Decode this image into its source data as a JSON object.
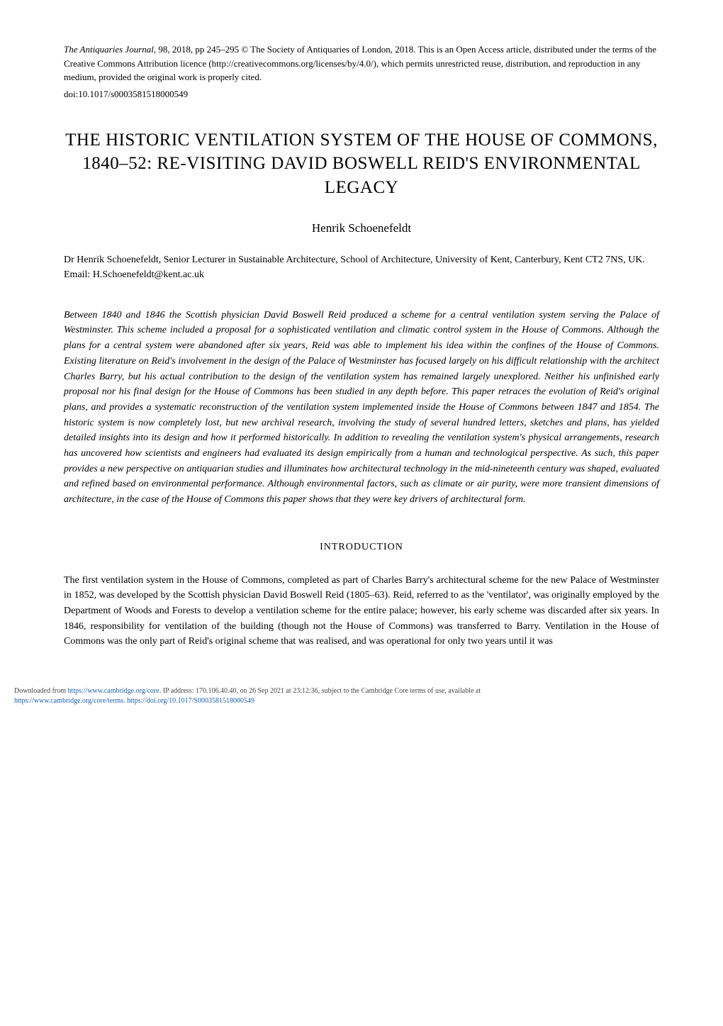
{
  "meta": {
    "journal": "The Antiquaries Journal",
    "citation": ", 98, 2018, pp 245–295   © The Society of Antiquaries of London, 2018. This is an Open Access article, distributed under the terms of the Creative Commons Attribution licence (http://creativecommons.org/licenses/by/4.0/), which permits unrestricted reuse, distribution, and reproduction in any medium, provided the original work is properly cited.",
    "doi": "doi:10.1017/s0003581518000549"
  },
  "title": "THE HISTORIC VENTILATION SYSTEM OF THE HOUSE OF COMMONS, 1840–52: RE-VISITING DAVID BOSWELL REID'S ENVIRONMENTAL LEGACY",
  "author": "Henrik Schoenefeldt",
  "affiliation": "Dr Henrik Schoenefeldt, Senior Lecturer in Sustainable Architecture, School of Architecture, University of Kent, Canterbury, Kent CT2 7NS, UK. Email: H.Schoenefeldt@kent.ac.uk",
  "abstract": "Between 1840 and 1846 the Scottish physician David Boswell Reid produced a scheme for a central ventilation system serving the Palace of Westminster. This scheme included a proposal for a sophisticated ventilation and climatic control system in the House of Commons. Although the plans for a central system were abandoned after six years, Reid was able to implement his idea within the confines of the House of Commons. Existing literature on Reid's involvement in the design of the Palace of Westminster has focused largely on his difficult relationship with the architect Charles Barry, but his actual contribution to the design of the ventilation system has remained largely unexplored. Neither his unfinished early proposal nor his final design for the House of Commons has been studied in any depth before. This paper retraces the evolution of Reid's original plans, and provides a systematic reconstruction of the ventilation system implemented inside the House of Commons between 1847 and 1854. The historic system is now completely lost, but new archival research, involving the study of several hundred letters, sketches and plans, has yielded detailed insights into its design and how it performed historically. In addition to revealing the ventilation system's physical arrangements, research has uncovered how scientists and engineers had evaluated its design empirically from a human and technological perspective. As such, this paper provides a new perspective on antiquarian studies and illuminates how architectural technology in the mid-nineteenth century was shaped, evaluated and refined based on environmental performance. Although environmental factors, such as climate or air purity, were more transient dimensions of architecture, in the case of the House of Commons this paper shows that they were key drivers of architectural form.",
  "section_heading": "INTRODUCTION",
  "body": "The first ventilation system in the House of Commons, completed as part of Charles Barry's architectural scheme for the new Palace of Westminster in 1852, was developed by the Scottish physician David Boswell Reid (1805–63). Reid, referred to as the 'ventilator', was originally employed by the Department of Woods and Forests to develop a ventilation scheme for the entire palace; however, his early scheme was discarded after six years. In 1846, responsibility for ventilation of the building (though not the House of Commons) was transferred to Barry. Ventilation in the House of Commons was the only part of Reid's original scheme that was realised, and was operational for only two years until it was",
  "footer": {
    "line1_prefix": "Downloaded from ",
    "line1_link1": "https://www.cambridge.org/core",
    "line1_mid": ". IP address: 170.106.40.40, on 26 Sep 2021 at 23:12:36, subject to the Cambridge Core terms of use, available at",
    "line2_link1": "https://www.cambridge.org/core/terms",
    "line2_mid": ". ",
    "line2_link2": "https://doi.org/10.1017/S0003581518000549"
  }
}
